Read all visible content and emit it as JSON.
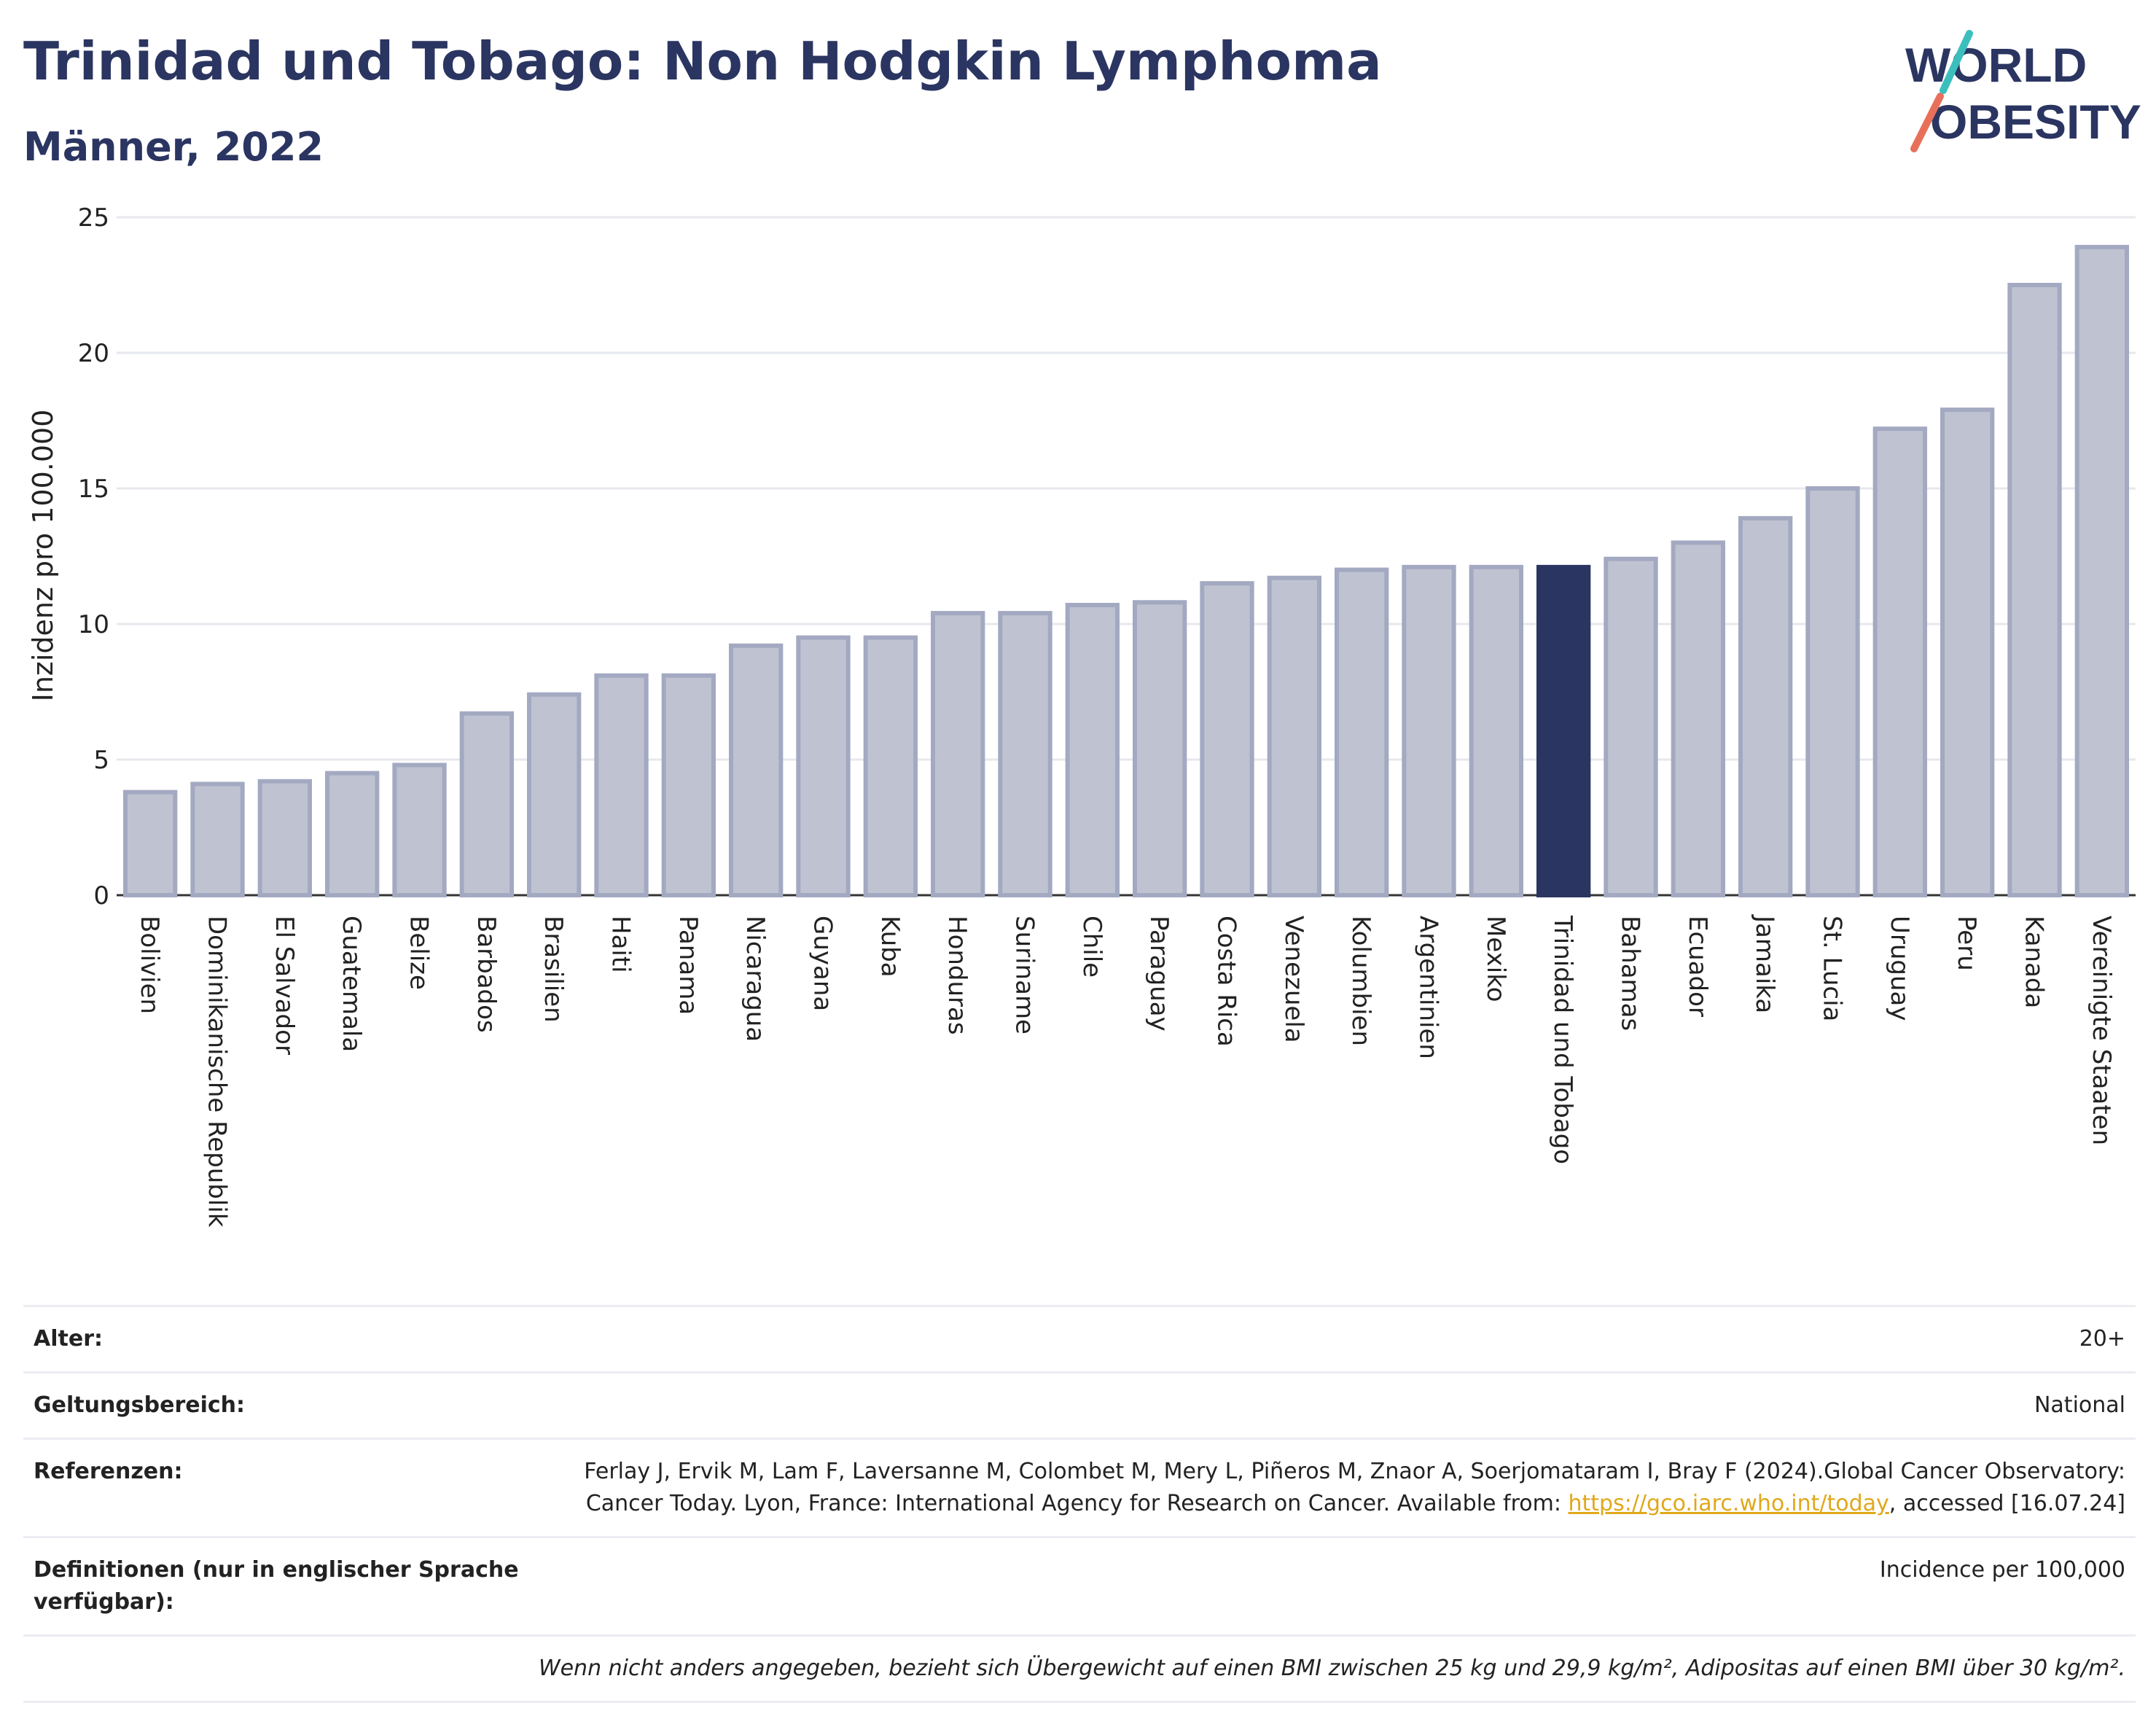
{
  "header": {
    "title": "Trinidad und Tobago: Non Hodgkin Lymphoma",
    "subtitle": "Männer, 2022"
  },
  "logo": {
    "line1": "WORLD",
    "line2": "OBESITY"
  },
  "colors": {
    "bar": "#bfc3d1",
    "bar_stroke": "#a3a9c1",
    "highlight": "#2b3561",
    "title": "#2b3561",
    "grid": "#e6e8ee"
  },
  "chart_data": {
    "type": "bar",
    "ylabel": "Inzidenz pro 100.000",
    "ylim": [
      0,
      25
    ],
    "yticks": [
      0,
      5,
      10,
      15,
      20,
      25
    ],
    "grid": true,
    "highlight": "Trinidad und Tobago",
    "categories": [
      "Bolivien",
      "Dominikanische Republik",
      "El Salvador",
      "Guatemala",
      "Belize",
      "Barbados",
      "Brasilien",
      "Haiti",
      "Panama",
      "Nicaragua",
      "Guyana",
      "Kuba",
      "Honduras",
      "Suriname",
      "Chile",
      "Paraguay",
      "Costa Rica",
      "Venezuela",
      "Kolumbien",
      "Argentinien",
      "Mexiko",
      "Trinidad und Tobago",
      "Bahamas",
      "Ecuador",
      "Jamaika",
      "St. Lucia",
      "Uruguay",
      "Peru",
      "Kanada",
      "Vereinigte Staaten"
    ],
    "values": [
      3.8,
      4.1,
      4.2,
      4.5,
      4.8,
      6.7,
      7.4,
      8.1,
      8.1,
      9.2,
      9.5,
      9.5,
      10.4,
      10.4,
      10.7,
      10.8,
      11.5,
      11.7,
      12.0,
      12.1,
      12.1,
      12.1,
      12.4,
      13.0,
      13.9,
      15.0,
      17.2,
      17.9,
      22.5,
      23.9
    ]
  },
  "info": {
    "age_label": "Alter:",
    "age_value": "20+",
    "scope_label": "Geltungsbereich:",
    "scope_value": "National",
    "ref_label": "Referenzen:",
    "ref_text": "Ferlay J, Ervik M, Lam F, Laversanne M, Colombet M, Mery L, Piñeros M, Znaor A, Soerjomataram I, Bray F (2024).Global Cancer Observatory: Cancer Today. Lyon, France: International Agency for Research on Cancer. Available from: ",
    "ref_link": "https://gco.iarc.who.int/today",
    "ref_tail": ", accessed [16.07.24]",
    "def_label": "Definitionen (nur in englischer Sprache verfügbar):",
    "def_value": "Incidence per 100,000",
    "note": "Wenn nicht anders angegeben, bezieht sich Übergewicht auf einen BMI zwischen 25 kg und 29,9 kg/m², Adipositas auf einen BMI über 30 kg/m²."
  }
}
